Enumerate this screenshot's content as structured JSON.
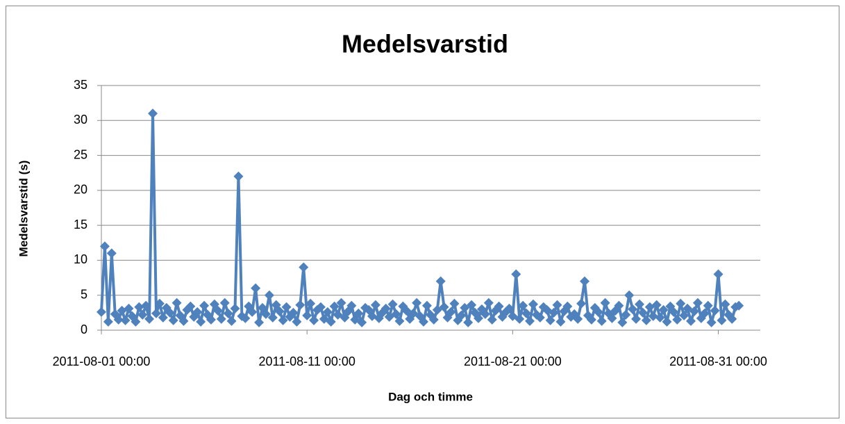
{
  "chart_data": {
    "type": "line",
    "title": "Medelsvarstid",
    "ylabel": "Medelsvarstid (s)",
    "xlabel": "Dag och timme",
    "ylim": [
      0,
      35
    ],
    "yticks": [
      0,
      5,
      10,
      15,
      20,
      25,
      30,
      35
    ],
    "grid": true,
    "xlim": [
      "2011-08-01 00:00",
      "2011-09-02 01:00"
    ],
    "xticks": [
      "2011-08-01 00:00",
      "2011-08-11 00:00",
      "2011-08-21 00:00",
      "2011-08-31 00:00"
    ],
    "x": [
      "2011-08-01 00:00",
      "2011-08-01 04:00",
      "2011-08-01 08:00",
      "2011-08-01 12:00",
      "2011-08-01 16:00",
      "2011-08-01 20:00",
      "2011-08-02 00:00",
      "2011-08-02 04:00",
      "2011-08-02 08:00",
      "2011-08-02 12:00",
      "2011-08-02 16:00",
      "2011-08-02 20:00",
      "2011-08-03 00:00",
      "2011-08-03 04:00",
      "2011-08-03 08:00",
      "2011-08-03 12:00",
      "2011-08-03 16:00",
      "2011-08-03 20:00",
      "2011-08-04 00:00",
      "2011-08-04 04:00",
      "2011-08-04 08:00",
      "2011-08-04 12:00",
      "2011-08-04 16:00",
      "2011-08-04 20:00",
      "2011-08-05 00:00",
      "2011-08-05 04:00",
      "2011-08-05 08:00",
      "2011-08-05 12:00",
      "2011-08-05 16:00",
      "2011-08-05 20:00",
      "2011-08-06 00:00",
      "2011-08-06 04:00",
      "2011-08-06 08:00",
      "2011-08-06 12:00",
      "2011-08-06 16:00",
      "2011-08-06 20:00",
      "2011-08-07 00:00",
      "2011-08-07 04:00",
      "2011-08-07 08:00",
      "2011-08-07 12:00",
      "2011-08-07 16:00",
      "2011-08-07 20:00",
      "2011-08-08 00:00",
      "2011-08-08 04:00",
      "2011-08-08 08:00",
      "2011-08-08 12:00",
      "2011-08-08 16:00",
      "2011-08-08 20:00",
      "2011-08-09 00:00",
      "2011-08-09 04:00",
      "2011-08-09 08:00",
      "2011-08-09 12:00",
      "2011-08-09 16:00",
      "2011-08-09 20:00",
      "2011-08-10 00:00",
      "2011-08-10 04:00",
      "2011-08-10 08:00",
      "2011-08-10 12:00",
      "2011-08-10 16:00",
      "2011-08-10 20:00",
      "2011-08-11 00:00",
      "2011-08-11 04:00",
      "2011-08-11 08:00",
      "2011-08-11 12:00",
      "2011-08-11 16:00",
      "2011-08-11 20:00",
      "2011-08-12 00:00",
      "2011-08-12 04:00",
      "2011-08-12 08:00",
      "2011-08-12 12:00",
      "2011-08-12 16:00",
      "2011-08-12 20:00",
      "2011-08-13 00:00",
      "2011-08-13 04:00",
      "2011-08-13 08:00",
      "2011-08-13 12:00",
      "2011-08-13 16:00",
      "2011-08-13 20:00",
      "2011-08-14 00:00",
      "2011-08-14 04:00",
      "2011-08-14 08:00",
      "2011-08-14 12:00",
      "2011-08-14 16:00",
      "2011-08-14 20:00",
      "2011-08-15 00:00",
      "2011-08-15 04:00",
      "2011-08-15 08:00",
      "2011-08-15 12:00",
      "2011-08-15 16:00",
      "2011-08-15 20:00",
      "2011-08-16 00:00",
      "2011-08-16 04:00",
      "2011-08-16 08:00",
      "2011-08-16 12:00",
      "2011-08-16 16:00",
      "2011-08-16 20:00",
      "2011-08-17 00:00",
      "2011-08-17 04:00",
      "2011-08-17 08:00",
      "2011-08-17 12:00",
      "2011-08-17 16:00",
      "2011-08-17 20:00",
      "2011-08-18 00:00",
      "2011-08-18 04:00",
      "2011-08-18 08:00",
      "2011-08-18 12:00",
      "2011-08-18 16:00",
      "2011-08-18 20:00",
      "2011-08-19 00:00",
      "2011-08-19 04:00",
      "2011-08-19 08:00",
      "2011-08-19 12:00",
      "2011-08-19 16:00",
      "2011-08-19 20:00",
      "2011-08-20 00:00",
      "2011-08-20 04:00",
      "2011-08-20 08:00",
      "2011-08-20 12:00",
      "2011-08-20 16:00",
      "2011-08-20 20:00",
      "2011-08-21 00:00",
      "2011-08-21 04:00",
      "2011-08-21 08:00",
      "2011-08-21 12:00",
      "2011-08-21 16:00",
      "2011-08-21 20:00",
      "2011-08-22 00:00",
      "2011-08-22 04:00",
      "2011-08-22 08:00",
      "2011-08-22 12:00",
      "2011-08-22 16:00",
      "2011-08-22 20:00",
      "2011-08-23 00:00",
      "2011-08-23 04:00",
      "2011-08-23 08:00",
      "2011-08-23 12:00",
      "2011-08-23 16:00",
      "2011-08-23 20:00",
      "2011-08-24 00:00",
      "2011-08-24 04:00",
      "2011-08-24 08:00",
      "2011-08-24 12:00",
      "2011-08-24 16:00",
      "2011-08-24 20:00",
      "2011-08-25 00:00",
      "2011-08-25 04:00",
      "2011-08-25 08:00",
      "2011-08-25 12:00",
      "2011-08-25 16:00",
      "2011-08-25 20:00",
      "2011-08-26 00:00",
      "2011-08-26 04:00",
      "2011-08-26 08:00",
      "2011-08-26 12:00",
      "2011-08-26 16:00",
      "2011-08-26 20:00",
      "2011-08-27 00:00",
      "2011-08-27 04:00",
      "2011-08-27 08:00",
      "2011-08-27 12:00",
      "2011-08-27 16:00",
      "2011-08-27 20:00",
      "2011-08-28 00:00",
      "2011-08-28 04:00",
      "2011-08-28 08:00",
      "2011-08-28 12:00",
      "2011-08-28 16:00",
      "2011-08-28 20:00",
      "2011-08-29 00:00",
      "2011-08-29 04:00",
      "2011-08-29 08:00",
      "2011-08-29 12:00",
      "2011-08-29 16:00",
      "2011-08-29 20:00",
      "2011-08-30 00:00",
      "2011-08-30 04:00",
      "2011-08-30 08:00",
      "2011-08-30 12:00",
      "2011-08-30 16:00",
      "2011-08-30 20:00",
      "2011-08-31 00:00",
      "2011-08-31 04:00",
      "2011-08-31 08:00",
      "2011-08-31 12:00",
      "2011-08-31 16:00",
      "2011-08-31 20:00",
      "2011-09-01 00:00"
    ],
    "series": [
      {
        "name": "Medelsvarstid",
        "color": "#4f81bd",
        "values": [
          2.6,
          12,
          1.2,
          11,
          2.3,
          1.5,
          2.8,
          1.4,
          3.1,
          2.0,
          1.2,
          3.3,
          2.2,
          3.5,
          1.6,
          31,
          2.4,
          3.8,
          1.8,
          3.2,
          2.5,
          1.4,
          3.9,
          2.1,
          1.3,
          2.9,
          3.4,
          1.9,
          2.6,
          1.2,
          3.5,
          2.2,
          1.5,
          3.7,
          2.8,
          1.6,
          3.9,
          2.4,
          1.3,
          3.1,
          22,
          2.0,
          1.7,
          3.4,
          2.6,
          6,
          1.1,
          3.2,
          2.3,
          5,
          1.8,
          3.6,
          2.7,
          1.4,
          3.3,
          1.9,
          2.5,
          1.2,
          3.6,
          9,
          2.1,
          3.8,
          1.4,
          2.9,
          3.3,
          1.6,
          2.6,
          1.2,
          3.4,
          2.2,
          3.9,
          1.8,
          2.7,
          3.5,
          1.5,
          2.4,
          1.1,
          3.2,
          2.9,
          2.0,
          3.6,
          1.7,
          2.5,
          3.1,
          1.9,
          3.7,
          2.3,
          1.3,
          3.4,
          2.8,
          1.6,
          2.4,
          3.9,
          2.0,
          1.2,
          3.5,
          2.2,
          1.5,
          2.9,
          7,
          3.3,
          1.8,
          2.6,
          3.8,
          1.4,
          2.1,
          3.2,
          1.1,
          3.6,
          2.5,
          1.7,
          3.0,
          2.3,
          3.9,
          1.5,
          2.8,
          3.4,
          1.9,
          2.6,
          3.1,
          2.0,
          8,
          1.6,
          3.5,
          2.4,
          1.3,
          3.7,
          2.2,
          1.8,
          3.3,
          2.9,
          1.4,
          2.5,
          3.6,
          1.2,
          2.7,
          3.4,
          1.9,
          2.3,
          1.6,
          3.8,
          7,
          2.1,
          1.5,
          3.2,
          2.6,
          1.3,
          3.9,
          2.4,
          1.7,
          2.8,
          3.5,
          1.1,
          2.2,
          5,
          3.0,
          1.6,
          3.7,
          2.5,
          1.4,
          3.3,
          2.0,
          3.6,
          1.8,
          2.9,
          1.2,
          3.4,
          2.6,
          1.5,
          3.8,
          2.1,
          3.1,
          1.3,
          2.7,
          3.9,
          1.7,
          2.4,
          3.5,
          1.1,
          2.8,
          8,
          1.4,
          3.7,
          2.2,
          1.6,
          3.3,
          3.5
        ]
      }
    ]
  }
}
